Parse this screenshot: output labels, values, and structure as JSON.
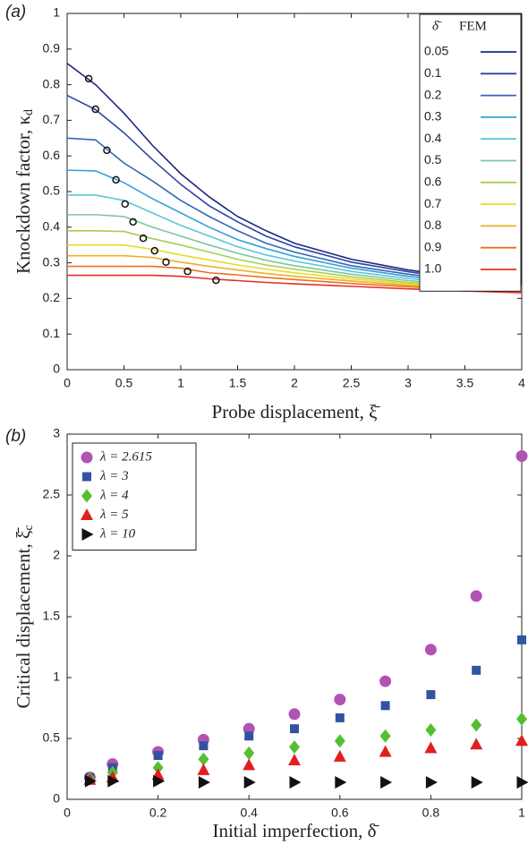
{
  "chart_data": [
    {
      "type": "line",
      "panel_label": "(a)",
      "x_label": "Probe displacement, ξ̄",
      "y_label": "Knockdown factor, κ",
      "y_label_sub": "d",
      "xlim": [
        0,
        4
      ],
      "xticks": [
        0,
        0.5,
        1,
        1.5,
        2,
        2.5,
        3,
        3.5,
        4
      ],
      "ylim": [
        0,
        1
      ],
      "yticks": [
        0,
        0.1,
        0.2,
        0.3,
        0.4,
        0.5,
        0.6,
        0.7,
        0.8,
        0.9,
        1
      ],
      "legend": "upper right",
      "legend_columns": [
        "δ̄",
        "FEM"
      ],
      "x": [
        0,
        0.25,
        0.5,
        0.75,
        1,
        1.25,
        1.5,
        1.75,
        2,
        2.5,
        3,
        3.5,
        4
      ],
      "series": [
        {
          "name": "0.05",
          "color": "#1d2783",
          "values": [
            0.86,
            0.8,
            0.72,
            0.63,
            0.55,
            0.485,
            0.43,
            0.39,
            0.355,
            0.31,
            0.28,
            0.258,
            0.242
          ]
        },
        {
          "name": "0.1",
          "color": "#2a45a3",
          "values": [
            0.77,
            0.73,
            0.665,
            0.59,
            0.52,
            0.46,
            0.415,
            0.375,
            0.345,
            0.302,
            0.275,
            0.254,
            0.239
          ]
        },
        {
          "name": "0.2",
          "color": "#3566b6",
          "values": [
            0.65,
            0.645,
            0.58,
            0.53,
            0.475,
            0.43,
            0.39,
            0.355,
            0.33,
            0.292,
            0.268,
            0.25,
            0.236
          ]
        },
        {
          "name": "0.3",
          "color": "#35a0d6",
          "values": [
            0.56,
            0.558,
            0.525,
            0.48,
            0.44,
            0.4,
            0.365,
            0.34,
            0.318,
            0.285,
            0.262,
            0.246,
            0.233
          ]
        },
        {
          "name": "0.4",
          "color": "#5cc6d6",
          "values": [
            0.49,
            0.49,
            0.475,
            0.44,
            0.405,
            0.375,
            0.345,
            0.322,
            0.305,
            0.276,
            0.256,
            0.241,
            0.23
          ]
        },
        {
          "name": "0.5",
          "color": "#7cc79e",
          "values": [
            0.435,
            0.435,
            0.43,
            0.4,
            0.375,
            0.35,
            0.327,
            0.307,
            0.292,
            0.268,
            0.25,
            0.237,
            0.228
          ]
        },
        {
          "name": "0.6",
          "color": "#a6cf4e",
          "values": [
            0.39,
            0.39,
            0.388,
            0.368,
            0.35,
            0.33,
            0.31,
            0.294,
            0.282,
            0.261,
            0.245,
            0.234,
            0.226
          ]
        },
        {
          "name": "0.7",
          "color": "#e6dd22",
          "values": [
            0.35,
            0.35,
            0.35,
            0.338,
            0.322,
            0.308,
            0.294,
            0.282,
            0.272,
            0.255,
            0.241,
            0.231,
            0.224
          ]
        },
        {
          "name": "0.8",
          "color": "#f0ae22",
          "values": [
            0.32,
            0.32,
            0.32,
            0.315,
            0.302,
            0.29,
            0.28,
            0.27,
            0.262,
            0.249,
            0.237,
            0.228,
            0.222
          ]
        },
        {
          "name": "0.9",
          "color": "#ef6d23",
          "values": [
            0.29,
            0.29,
            0.29,
            0.29,
            0.285,
            0.272,
            0.266,
            0.259,
            0.253,
            0.242,
            0.233,
            0.225,
            0.22
          ]
        },
        {
          "name": "1.0",
          "color": "#e33124",
          "values": [
            0.265,
            0.265,
            0.265,
            0.265,
            0.262,
            0.255,
            0.25,
            0.245,
            0.241,
            0.234,
            0.227,
            0.221,
            0.216
          ]
        }
      ],
      "markers": {
        "x": [
          0.19,
          0.25,
          0.35,
          0.43,
          0.51,
          0.58,
          0.67,
          0.77,
          0.87,
          1.06,
          1.31
        ],
        "y": [
          0.817,
          0.731,
          0.616,
          0.533,
          0.465,
          0.415,
          0.369,
          0.334,
          0.302,
          0.276,
          0.251
        ]
      }
    },
    {
      "type": "scatter",
      "panel_label": "(b)",
      "x_label": "Initial imperfection, δ̄",
      "y_label": "Critical displacement, ξ̄",
      "y_label_sub": "c",
      "xlim": [
        0,
        1
      ],
      "xticks": [
        0,
        0.2,
        0.4,
        0.6,
        0.8,
        1
      ],
      "ylim": [
        0,
        3
      ],
      "yticks": [
        0,
        0.5,
        1,
        1.5,
        2,
        2.5,
        3
      ],
      "legend": "upper left",
      "x": [
        0.05,
        0.1,
        0.2,
        0.3,
        0.4,
        0.5,
        0.6,
        0.7,
        0.8,
        0.9,
        1.0
      ],
      "series": [
        {
          "name": "λ = 2.615",
          "color": "#b153b3",
          "marker": "circle",
          "values": [
            0.18,
            0.29,
            0.39,
            0.49,
            0.58,
            0.7,
            0.82,
            0.97,
            1.23,
            1.67,
            2.82
          ]
        },
        {
          "name": "λ = 3",
          "color": "#3253a3",
          "marker": "square",
          "values": [
            0.18,
            0.26,
            0.36,
            0.44,
            0.52,
            0.58,
            0.67,
            0.77,
            0.86,
            1.06,
            1.31
          ]
        },
        {
          "name": "λ = 4",
          "color": "#55bf33",
          "marker": "diamond",
          "values": [
            0.17,
            0.22,
            0.26,
            0.33,
            0.38,
            0.43,
            0.48,
            0.52,
            0.57,
            0.61,
            0.66
          ]
        },
        {
          "name": "λ = 5",
          "color": "#e21f1f",
          "marker": "triangle-up",
          "values": [
            0.16,
            0.18,
            0.2,
            0.24,
            0.28,
            0.32,
            0.35,
            0.39,
            0.42,
            0.45,
            0.48
          ]
        },
        {
          "name": "λ = 10",
          "color": "#111111",
          "marker": "triangle-right",
          "values": [
            0.15,
            0.15,
            0.15,
            0.14,
            0.14,
            0.14,
            0.14,
            0.14,
            0.14,
            0.14,
            0.14
          ]
        }
      ]
    }
  ]
}
